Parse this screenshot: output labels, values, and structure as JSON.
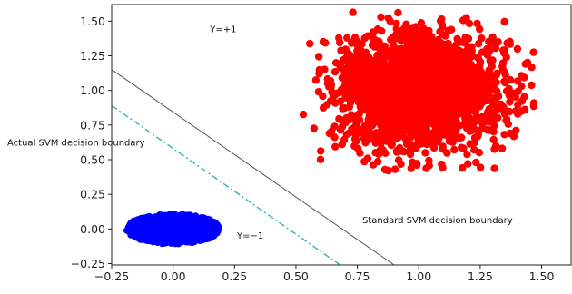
{
  "chart_data": {
    "type": "scatter",
    "xlim": [
      -0.25,
      1.62
    ],
    "ylim": [
      -0.26,
      1.62
    ],
    "x_ticks": [
      -0.25,
      0.0,
      0.25,
      0.5,
      0.75,
      1.0,
      1.25,
      1.5
    ],
    "x_tick_labels": [
      "−0.25",
      "0.00",
      "0.25",
      "0.50",
      "0.75",
      "1.00",
      "1.25",
      "1.50"
    ],
    "y_ticks": [
      -0.25,
      0.0,
      0.25,
      0.5,
      0.75,
      1.0,
      1.25,
      1.5
    ],
    "y_tick_labels": [
      "−0.25",
      "0.00",
      "0.25",
      "0.50",
      "0.75",
      "1.00",
      "1.25",
      "1.50"
    ],
    "grid": false,
    "series": [
      {
        "label": "Y=+1",
        "color": "#ff0000",
        "center": [
          1.0,
          1.0
        ],
        "extent_x": [
          0.6,
          1.55
        ],
        "extent_y": [
          0.4,
          1.6
        ]
      },
      {
        "label": "Y=−1",
        "color": "#0000ff",
        "center": [
          0.0,
          0.0
        ],
        "extent_x": [
          -0.18,
          0.2
        ],
        "extent_y": [
          -0.1,
          0.12
        ]
      }
    ],
    "lines": [
      {
        "name": "Standard SVM decision boundary",
        "color": "#555555",
        "style": "solid",
        "points": [
          [
            -0.25,
            1.15
          ],
          [
            0.9,
            -0.26
          ]
        ]
      },
      {
        "name": "Actual SVM decision boundary",
        "color": "#2fb5b5",
        "style": "dashdot",
        "points": [
          [
            -0.25,
            0.89
          ],
          [
            0.68,
            -0.26
          ]
        ]
      }
    ],
    "annotations": [
      {
        "text": "Y=+1",
        "x": 0.15,
        "y": 1.42
      },
      {
        "text": "Y=−1",
        "x": 0.26,
        "y": -0.07
      },
      {
        "text": "Actual SVM decision boundary",
        "x": -0.25,
        "y": 0.6
      },
      {
        "text": "Standard SVM decision boundary",
        "x": 0.77,
        "y": 0.04
      }
    ]
  }
}
